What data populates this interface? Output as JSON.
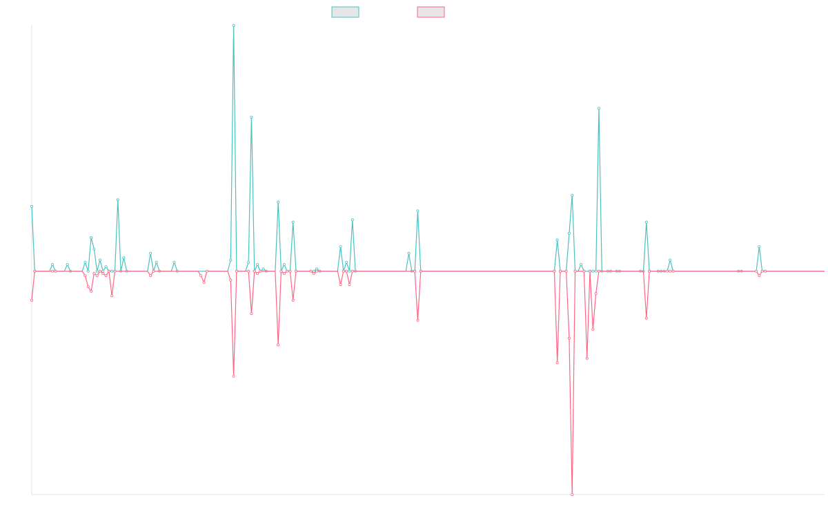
{
  "colors": {
    "series_a": "#4bc0c0",
    "series_b": "#ff6384",
    "legend_fill": "#e6e6e6",
    "axis": "#e0e0e0",
    "background": "#ffffff"
  },
  "chart_data": {
    "type": "line",
    "title": "",
    "xlabel": "",
    "ylabel": "",
    "grid": false,
    "legend": "top-center",
    "x_count": 268,
    "ylim": [
      -100,
      110
    ],
    "series": [
      {
        "color": "#4bc0c0",
        "points": [
          [
            0,
            29
          ],
          [
            1,
            0
          ],
          [
            7,
            3
          ],
          [
            8,
            0
          ],
          [
            12,
            3
          ],
          [
            13,
            0
          ],
          [
            18,
            4
          ],
          [
            19,
            0
          ],
          [
            20,
            15
          ],
          [
            21,
            10
          ],
          [
            22,
            0
          ],
          [
            23,
            5
          ],
          [
            24,
            0
          ],
          [
            25,
            2
          ],
          [
            26,
            0
          ],
          [
            27,
            0
          ],
          [
            28,
            0
          ],
          [
            29,
            32
          ],
          [
            30,
            0
          ],
          [
            31,
            6
          ],
          [
            32,
            0
          ],
          [
            40,
            8
          ],
          [
            41,
            0
          ],
          [
            42,
            4
          ],
          [
            43,
            0
          ],
          [
            48,
            4
          ],
          [
            49,
            0
          ],
          [
            67,
            5
          ],
          [
            68,
            110
          ],
          [
            69,
            0
          ],
          [
            73,
            4
          ],
          [
            74,
            69
          ],
          [
            75,
            0
          ],
          [
            76,
            3
          ],
          [
            77,
            0
          ],
          [
            78,
            1
          ],
          [
            79,
            0
          ],
          [
            83,
            31
          ],
          [
            84,
            0
          ],
          [
            85,
            3
          ],
          [
            86,
            0
          ],
          [
            87,
            0
          ],
          [
            88,
            22
          ],
          [
            89,
            0
          ],
          [
            94,
            0
          ],
          [
            95,
            0
          ],
          [
            96,
            1
          ],
          [
            97,
            0
          ],
          [
            104,
            11
          ],
          [
            105,
            0
          ],
          [
            106,
            4
          ],
          [
            107,
            0
          ],
          [
            108,
            23
          ],
          [
            109,
            0
          ],
          [
            127,
            8
          ],
          [
            128,
            0
          ],
          [
            129,
            0
          ],
          [
            130,
            27
          ],
          [
            131,
            0
          ],
          [
            176,
            0
          ],
          [
            177,
            14
          ],
          [
            178,
            0
          ],
          [
            180,
            0
          ],
          [
            181,
            17
          ],
          [
            182,
            34
          ],
          [
            183,
            0
          ],
          [
            185,
            3
          ],
          [
            186,
            0
          ],
          [
            188,
            0
          ],
          [
            189,
            0
          ],
          [
            190,
            0
          ],
          [
            191,
            73
          ],
          [
            192,
            0
          ],
          [
            194,
            0
          ],
          [
            195,
            0
          ],
          [
            197,
            0
          ],
          [
            198,
            0
          ],
          [
            205,
            0
          ],
          [
            206,
            0
          ],
          [
            207,
            22
          ],
          [
            208,
            0
          ],
          [
            211,
            0
          ],
          [
            212,
            0
          ],
          [
            213,
            0
          ],
          [
            215,
            5
          ],
          [
            216,
            0
          ],
          [
            238,
            0
          ],
          [
            239,
            0
          ],
          [
            245,
            11
          ],
          [
            246,
            0
          ],
          [
            247,
            0
          ]
        ]
      },
      {
        "color": "#ff6384",
        "points": [
          [
            0,
            -13
          ],
          [
            1,
            0
          ],
          [
            7,
            0
          ],
          [
            8,
            0
          ],
          [
            18,
            -2
          ],
          [
            19,
            -7
          ],
          [
            20,
            -9
          ],
          [
            21,
            -1
          ],
          [
            22,
            -2
          ],
          [
            23,
            0
          ],
          [
            24,
            -1
          ],
          [
            25,
            -2
          ],
          [
            26,
            0
          ],
          [
            27,
            -11
          ],
          [
            28,
            0
          ],
          [
            40,
            -2
          ],
          [
            41,
            0
          ],
          [
            57,
            -2
          ],
          [
            58,
            -5
          ],
          [
            59,
            0
          ],
          [
            67,
            -4
          ],
          [
            68,
            -47
          ],
          [
            69,
            0
          ],
          [
            73,
            0
          ],
          [
            74,
            -19
          ],
          [
            75,
            0
          ],
          [
            76,
            -1
          ],
          [
            77,
            0
          ],
          [
            83,
            -33
          ],
          [
            84,
            0
          ],
          [
            85,
            -1
          ],
          [
            86,
            0
          ],
          [
            87,
            0
          ],
          [
            88,
            -13
          ],
          [
            89,
            0
          ],
          [
            94,
            0
          ],
          [
            95,
            -1
          ],
          [
            96,
            0
          ],
          [
            104,
            -6
          ],
          [
            105,
            0
          ],
          [
            106,
            0
          ],
          [
            107,
            -6
          ],
          [
            108,
            0
          ],
          [
            129,
            0
          ],
          [
            130,
            -22
          ],
          [
            131,
            0
          ],
          [
            176,
            0
          ],
          [
            177,
            -41
          ],
          [
            178,
            0
          ],
          [
            180,
            0
          ],
          [
            181,
            -30
          ],
          [
            182,
            -100
          ],
          [
            183,
            0
          ],
          [
            186,
            0
          ],
          [
            187,
            -39
          ],
          [
            188,
            0
          ],
          [
            189,
            -26
          ],
          [
            190,
            -10
          ],
          [
            191,
            0
          ],
          [
            207,
            -21
          ],
          [
            208,
            0
          ],
          [
            214,
            0
          ],
          [
            215,
            0
          ],
          [
            216,
            0
          ],
          [
            244,
            0
          ],
          [
            245,
            -2
          ],
          [
            246,
            0
          ],
          [
            247,
            0
          ]
        ]
      }
    ]
  }
}
